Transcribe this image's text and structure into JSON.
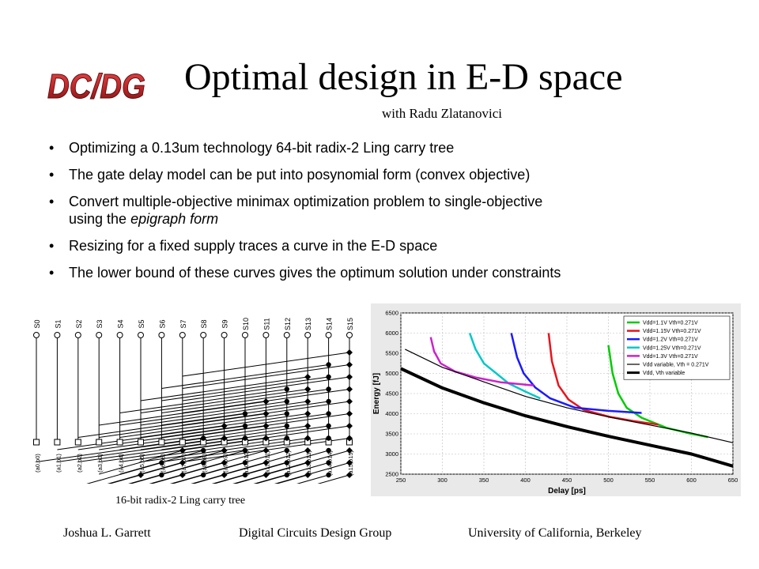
{
  "logo": {
    "text": "DC/DG",
    "color": "#c0282a"
  },
  "title": "Optimal design in E-D space",
  "subtitle": "with Radu Zlatanovici",
  "bullets": [
    {
      "parts": [
        {
          "t": "Optimizing a 0.13um technology 64-bit radix-2 Ling carry tree"
        }
      ]
    },
    {
      "parts": [
        {
          "t": "The gate delay model can be put into posynomial form (convex objective)"
        }
      ]
    },
    {
      "parts": [
        {
          "t": "Convert multiple-objective minimax optimization problem to single-objective"
        }
      ]
    },
    {
      "parts": [
        {
          "t": "using the "
        },
        {
          "t": "epigraph form",
          "i": true
        }
      ],
      "continuation": true
    },
    {
      "parts": [
        {
          "t": "Resizing for a fixed supply traces a curve in the E-D space"
        }
      ]
    },
    {
      "parts": [
        {
          "t": "The lower bound of these curves gives the optimum solution under constraints"
        }
      ]
    }
  ],
  "tree": {
    "caption": "16-bit radix-2 Ling carry tree",
    "outputs": [
      "S0",
      "S1",
      "S2",
      "S3",
      "S4",
      "S5",
      "S6",
      "S7",
      "S8",
      "S9",
      "S10",
      "S11",
      "S12",
      "S13",
      "S14",
      "S15"
    ],
    "inputs": [
      "(a0,b0)",
      "(a1,b1)",
      "(a2,b2)",
      "(a3,b3)",
      "(a4,b4)",
      "(a5,b5)",
      "(a6,b6)",
      "(a7,b7)",
      "(a8,b8)",
      "(a9,b9)",
      "(a10,b10)",
      "(a11,b11)",
      "(a12,b12)",
      "(a13,b13)",
      "(a14,b14)",
      "(a15,b15)"
    ]
  },
  "chart_data": {
    "type": "line",
    "xlabel": "Delay [ps]",
    "ylabel": "Energy [fJ]",
    "xlim": [
      250,
      650
    ],
    "ylim": [
      2500,
      6500
    ],
    "xticks": [
      250,
      300,
      350,
      400,
      450,
      500,
      550,
      600,
      650
    ],
    "yticks": [
      2500,
      3000,
      3500,
      4000,
      4500,
      5000,
      5500,
      6000,
      6500
    ],
    "grid": true,
    "legend_position": "top-right",
    "series": [
      {
        "name": "Vdd=1.1V Vth=0.271V",
        "color": "#00cc00",
        "width": 2.5,
        "points": [
          [
            500,
            5700
          ],
          [
            505,
            5000
          ],
          [
            512,
            4500
          ],
          [
            522,
            4150
          ],
          [
            540,
            3900
          ],
          [
            570,
            3650
          ],
          [
            600,
            3500
          ],
          [
            620,
            3420
          ]
        ]
      },
      {
        "name": "Vdd=1.15V Vth=0.271V",
        "color": "#e8141c",
        "width": 2.5,
        "points": [
          [
            428,
            6000
          ],
          [
            432,
            5300
          ],
          [
            440,
            4700
          ],
          [
            452,
            4350
          ],
          [
            470,
            4100
          ],
          [
            500,
            3930
          ],
          [
            530,
            3820
          ],
          [
            560,
            3730
          ]
        ]
      },
      {
        "name": "Vdd=1.2V Vth=0.271V",
        "color": "#1a1aff",
        "width": 2.5,
        "points": [
          [
            383,
            6000
          ],
          [
            390,
            5400
          ],
          [
            398,
            5000
          ],
          [
            412,
            4650
          ],
          [
            430,
            4380
          ],
          [
            460,
            4150
          ],
          [
            500,
            4070
          ],
          [
            540,
            4020
          ]
        ]
      },
      {
        "name": "Vdd=1.25V Vth=0.271V",
        "color": "#00c8c8",
        "width": 2.5,
        "points": [
          [
            333,
            6000
          ],
          [
            340,
            5600
          ],
          [
            350,
            5250
          ],
          [
            365,
            5000
          ],
          [
            380,
            4750
          ],
          [
            400,
            4550
          ],
          [
            418,
            4380
          ]
        ]
      },
      {
        "name": "Vdd=1.3V Vth=0.271V",
        "color": "#cc22cc",
        "width": 2.5,
        "points": [
          [
            286,
            5900
          ],
          [
            290,
            5550
          ],
          [
            298,
            5250
          ],
          [
            315,
            5050
          ],
          [
            340,
            4900
          ],
          [
            370,
            4780
          ],
          [
            410,
            4700
          ]
        ]
      },
      {
        "name": "Vdd variable, Vth = 0.271V",
        "color": "#000000",
        "width": 1.2,
        "points": [
          [
            255,
            5600
          ],
          [
            300,
            5150
          ],
          [
            350,
            4790
          ],
          [
            400,
            4430
          ],
          [
            450,
            4150
          ],
          [
            500,
            3920
          ],
          [
            550,
            3720
          ],
          [
            600,
            3520
          ],
          [
            650,
            3280
          ]
        ]
      },
      {
        "name": "Vdd, Vth variable",
        "color": "#000000",
        "width": 4,
        "points": [
          [
            250,
            5120
          ],
          [
            300,
            4640
          ],
          [
            350,
            4270
          ],
          [
            400,
            3950
          ],
          [
            450,
            3680
          ],
          [
            500,
            3440
          ],
          [
            550,
            3220
          ],
          [
            600,
            3000
          ],
          [
            650,
            2700
          ]
        ]
      }
    ]
  },
  "footer": {
    "left": "Joshua L. Garrett",
    "center": "Digital Circuits Design Group",
    "right": "University of California, Berkeley"
  }
}
